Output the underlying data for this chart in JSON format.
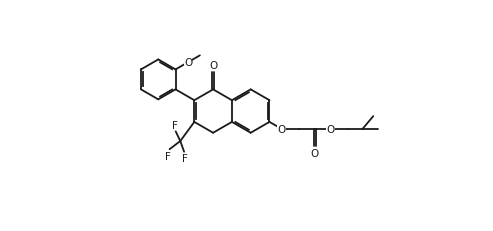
{
  "background": "#ffffff",
  "line_color": "#1a1a1a",
  "line_width": 1.3,
  "font_size": 7.5,
  "fig_width": 4.93,
  "fig_height": 2.32,
  "xlim": [
    -1.0,
    10.5
  ],
  "ylim": [
    -1.5,
    5.5
  ]
}
